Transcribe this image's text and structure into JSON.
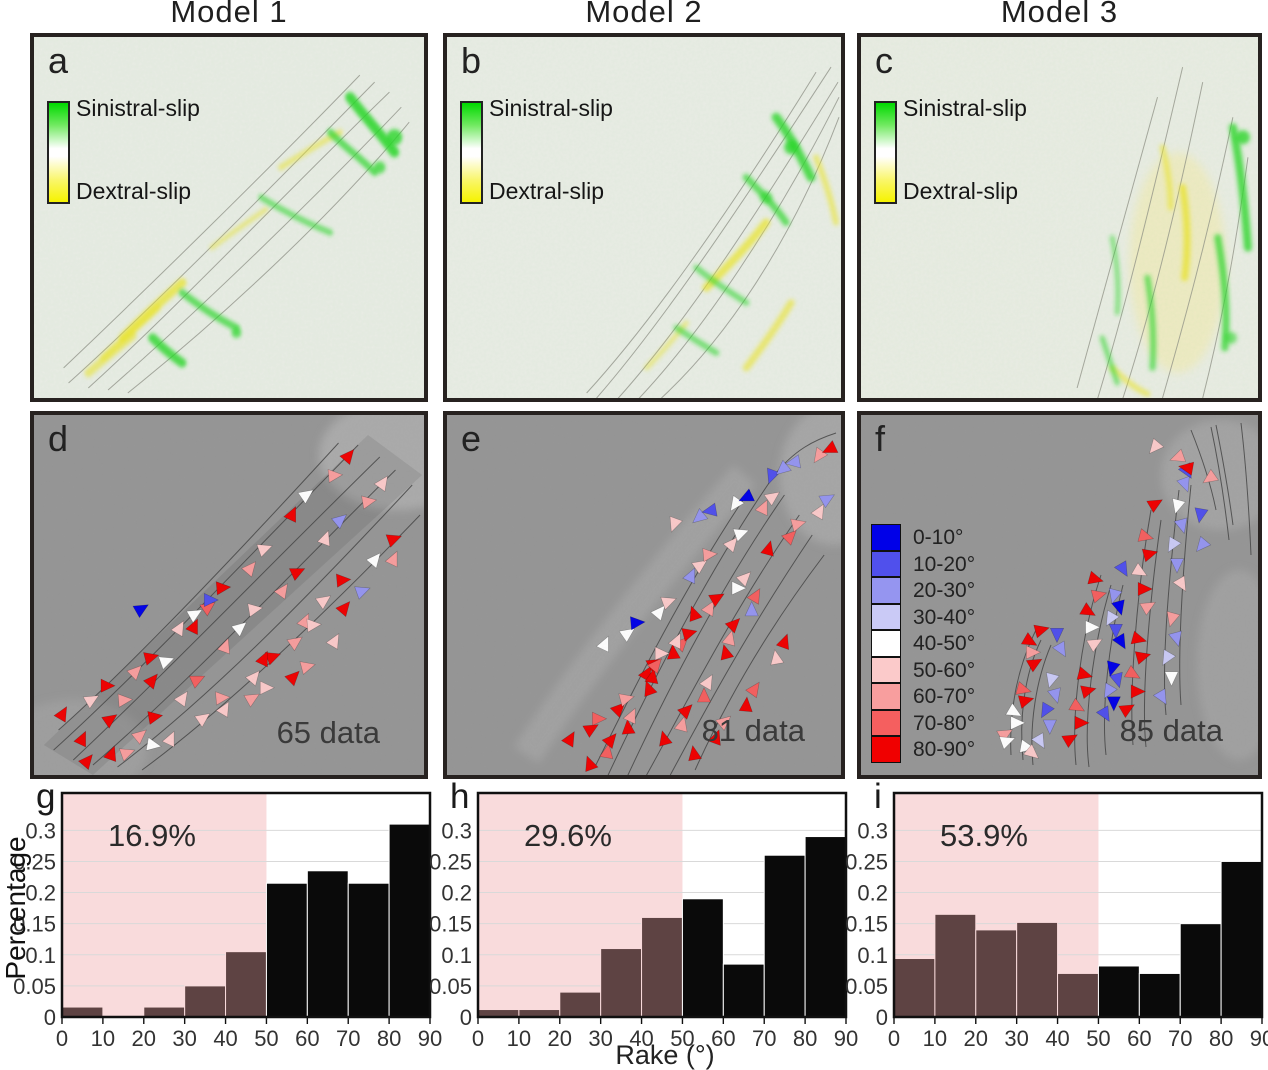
{
  "figure": {
    "titles": [
      "Model 1",
      "Model 2",
      "Model 3"
    ],
    "slip_panels": [
      {
        "letter": "a",
        "sinistral": "Sinistral-slip",
        "dextral": "Dextral-slip"
      },
      {
        "letter": "b",
        "sinistral": "Sinistral-slip",
        "dextral": "Dextral-slip"
      },
      {
        "letter": "c",
        "sinistral": "Sinistral-slip",
        "dextral": "Dextral-slip"
      }
    ],
    "slip_gradient": {
      "top_color": "#00d900",
      "mid_color": "#ffffff",
      "bottom_color": "#f6f300"
    },
    "rake_palette": [
      "#0000e8",
      "#5050ec",
      "#9595f0",
      "#cacaf6",
      "#ffffff",
      "#fbcaca",
      "#f89e9e",
      "#f55f5f",
      "#f00000"
    ],
    "rake_panels": [
      {
        "letter": "d",
        "count": "65 data",
        "chains": [
          [
            55,
            330,
            320,
            38,
            -35,
            [
              8,
              8,
              6,
              8,
              4,
              8,
              7,
              8,
              6,
              5,
              8,
              4,
              6,
              8
            ]
          ],
          [
            85,
            345,
            355,
            65,
            -40,
            [
              8,
              6,
              8,
              5,
              7,
              6,
              4,
              5,
              6,
              8,
              5,
              2,
              6,
              5
            ]
          ],
          [
            35,
            305,
            185,
            185,
            -30,
            [
              8,
              5,
              8,
              6,
              8,
              5,
              4,
              1
            ]
          ],
          [
            145,
            330,
            370,
            118,
            -35,
            [
              5,
              5,
              6,
              5,
              8,
              6,
              5,
              8,
              4,
              8
            ]
          ],
          [
            240,
            250,
            360,
            150,
            -35,
            [
              8,
              6,
              5,
              8,
              2,
              6
            ]
          ],
          [
            60,
            352,
            125,
            330,
            -20,
            [
              8,
              6,
              4
            ]
          ],
          [
            200,
            300,
            300,
            232,
            -30,
            [
              5,
              6,
              5,
              8,
              6,
              5
            ]
          ],
          [
            115,
            200,
            115,
            200,
            0,
            [
              0
            ]
          ]
        ]
      },
      {
        "letter": "e",
        "count": "81 data",
        "chains": [
          [
            235,
            115,
            390,
            28,
            140,
            [
              5,
              2,
              1,
              4,
              0,
              1,
              2,
              2,
              6,
              8
            ]
          ],
          [
            165,
            235,
            330,
            85,
            -35,
            [
              4,
              4,
              0,
              4,
              5,
              2,
              5,
              6,
              5,
              4,
              6,
              5
            ]
          ],
          [
            130,
            330,
            300,
            160,
            -30,
            [
              8,
              8,
              7,
              8,
              6,
              8,
              8,
              5,
              7,
              8,
              6,
              8,
              4,
              5
            ]
          ],
          [
            150,
            355,
            245,
            205,
            -80,
            [
              8,
              7,
              8,
              8,
              6,
              8,
              8,
              7,
              8,
              5,
              8
            ]
          ],
          [
            225,
            330,
            315,
            175,
            -75,
            [
              8,
              6,
              8,
              7,
              5,
              8,
              6,
              8,
              2,
              7
            ]
          ],
          [
            255,
            345,
            340,
            230,
            -70,
            [
              8,
              8,
              6,
              8,
              7,
              5,
              8
            ]
          ],
          [
            330,
            140,
            385,
            78,
            -45,
            [
              8,
              7,
              6,
              5,
              2
            ]
          ]
        ]
      },
      {
        "letter": "f",
        "count": "85 data",
        "legend": [
          {
            "label": "0-10°",
            "color": "#0000e8"
          },
          {
            "label": "10-20°",
            "color": "#5050ec"
          },
          {
            "label": "20-30°",
            "color": "#9595f0"
          },
          {
            "label": "30-40°",
            "color": "#cacaf6"
          },
          {
            "label": "40-50°",
            "color": "#ffffff"
          },
          {
            "label": "50-60°",
            "color": "#fbcaca"
          },
          {
            "label": "60-70°",
            "color": "#f89e9e"
          },
          {
            "label": "70-80°",
            "color": "#f55f5f"
          },
          {
            "label": "80-90°",
            "color": "#f00000"
          }
        ],
        "chains": [
          [
            150,
            325,
            178,
            212,
            0,
            [
              6,
              4,
              4,
              8,
              7,
              8,
              6,
              8,
              8
            ]
          ],
          [
            185,
            332,
            196,
            222,
            90,
            [
              3,
              2,
              1,
              2,
              3,
              2,
              1
            ]
          ],
          [
            215,
            330,
            238,
            158,
            0,
            [
              8,
              8,
              7,
              8,
              8,
              5,
              4,
              8,
              7,
              8
            ]
          ],
          [
            250,
            305,
            258,
            160,
            90,
            [
              1,
              0,
              2,
              1,
              0,
              0,
              1,
              3,
              0,
              2,
              1
            ]
          ],
          [
            272,
            300,
            290,
            95,
            0,
            [
              8,
              8,
              7,
              8,
              8,
              6,
              8,
              5,
              8,
              7,
              8
            ]
          ],
          [
            307,
            288,
            322,
            62,
            90,
            [
              2,
              4,
              3,
              2,
              6,
              5,
              2,
              3,
              2,
              4,
              1
            ]
          ],
          [
            300,
            38,
            345,
            60,
            160,
            [
              5,
              6,
              8,
              6
            ]
          ],
          [
            330,
            75,
            345,
            130,
            100,
            [
              2,
              1,
              2
            ]
          ],
          [
            152,
            332,
            175,
            338,
            10,
            [
              4,
              4,
              5
            ]
          ]
        ]
      }
    ]
  },
  "chart_meta": {
    "xlabel": "Rake (°)",
    "ylabel": "Percentage",
    "xlim": [
      0,
      90
    ],
    "ylim": [
      0,
      0.36
    ],
    "xticks": [
      "0",
      "10",
      "20",
      "30",
      "40",
      "50",
      "60",
      "70",
      "80",
      "90"
    ],
    "yticks": [
      {
        "v": 0,
        "label": "0"
      },
      {
        "v": 0.05,
        "label": "0.05"
      },
      {
        "v": 0.1,
        "label": "0.1"
      },
      {
        "v": 0.15,
        "label": "0.15"
      },
      {
        "v": 0.2,
        "label": "0.2"
      },
      {
        "v": 0.25,
        "label": "0.25"
      },
      {
        "v": 0.3,
        "label": "0.3"
      }
    ],
    "grid": true,
    "shaded_x_range": [
      0,
      50
    ]
  },
  "chart_data": [
    {
      "type": "bar",
      "panel": "g",
      "annotation": "16.9%",
      "categories": [
        "0-10",
        "10-20",
        "20-30",
        "30-40",
        "40-50",
        "50-60",
        "60-70",
        "70-80",
        "80-90"
      ],
      "values": [
        0.016,
        0.0,
        0.016,
        0.05,
        0.105,
        0.215,
        0.235,
        0.215,
        0.31
      ]
    },
    {
      "type": "bar",
      "panel": "h",
      "annotation": "29.6%",
      "categories": [
        "0-10",
        "10-20",
        "20-30",
        "30-40",
        "40-50",
        "50-60",
        "60-70",
        "70-80",
        "80-90"
      ],
      "values": [
        0.012,
        0.012,
        0.04,
        0.11,
        0.16,
        0.19,
        0.085,
        0.26,
        0.29
      ]
    },
    {
      "type": "bar",
      "panel": "i",
      "annotation": "53.9%",
      "categories": [
        "0-10",
        "10-20",
        "20-30",
        "30-40",
        "40-50",
        "50-60",
        "60-70",
        "70-80",
        "80-90"
      ],
      "values": [
        0.094,
        0.165,
        0.14,
        0.152,
        0.07,
        0.082,
        0.07,
        0.15,
        0.25
      ]
    }
  ],
  "colors": {
    "shaded_region": "#f9dbdc",
    "bar_dark": "#0a0a0a",
    "bar_in_shade": "#5e4343",
    "grid_line": "#d9d9d9",
    "axis": "#101010",
    "tick_text": "#333333",
    "annotation_text": "#2a2a2a",
    "panel_border": "#272220",
    "slip_bg": "#e9ece5",
    "gray_bg": "#969696",
    "green": "#25d625",
    "yellow": "#ece42e"
  }
}
